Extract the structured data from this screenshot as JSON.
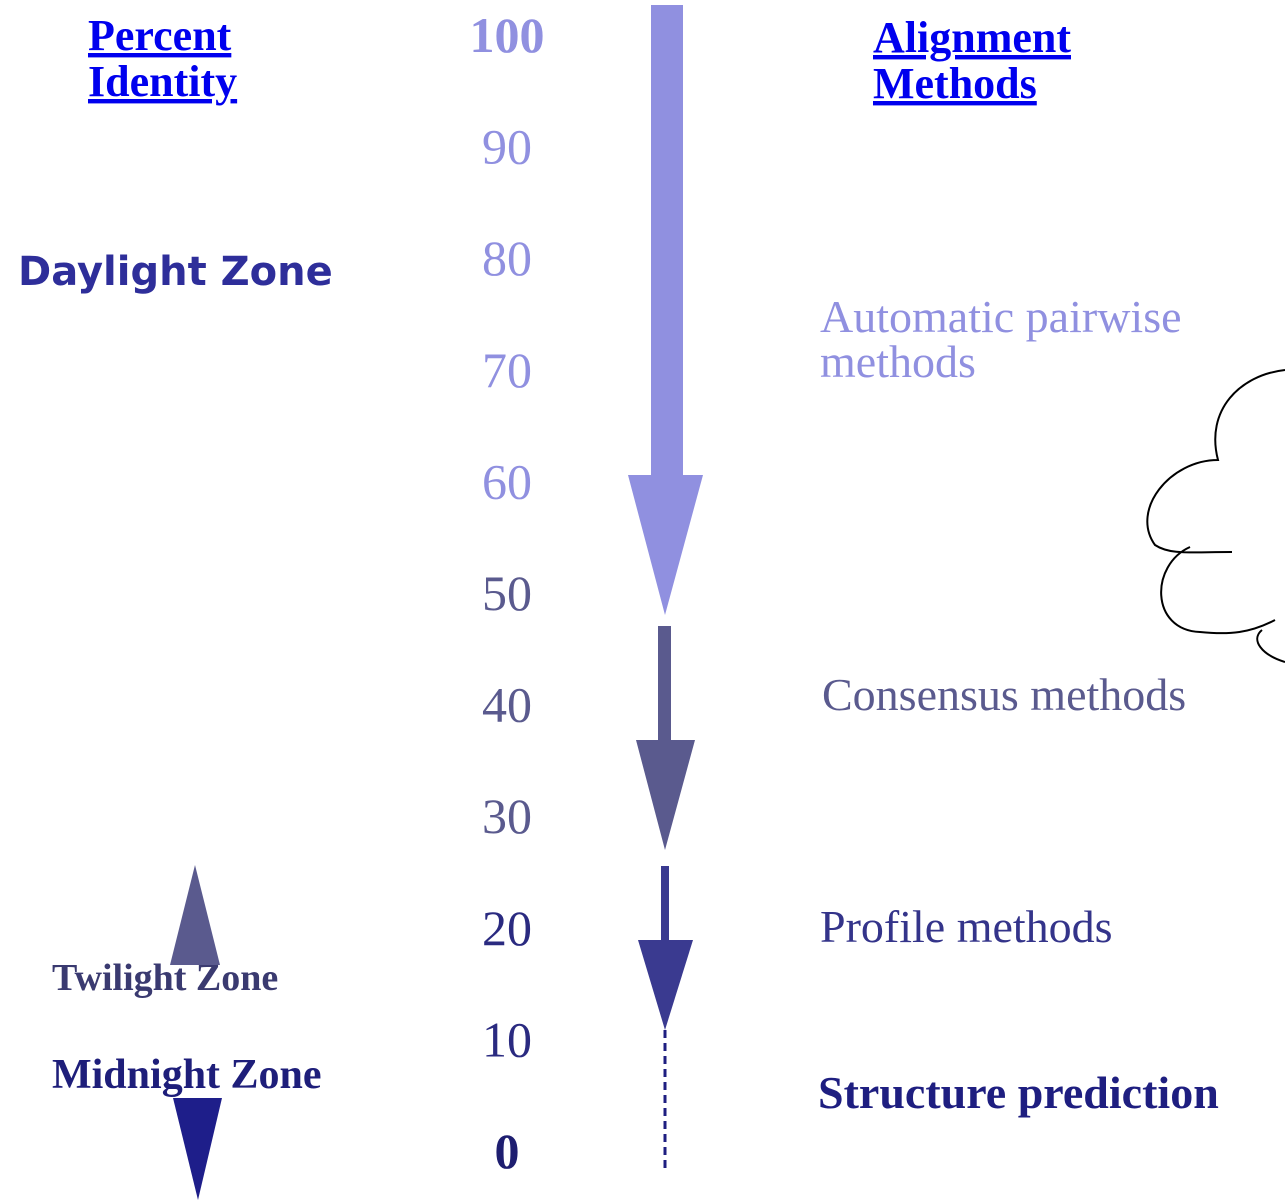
{
  "headers": {
    "percent_identity": [
      "Percent",
      "Identity"
    ],
    "alignment_methods": [
      "Alignment",
      "Methods"
    ]
  },
  "scale": [
    "100",
    "90",
    "80",
    "70",
    "60",
    "50",
    "40",
    "30",
    "20",
    "10",
    "0"
  ],
  "zones": {
    "daylight": "Daylight Zone",
    "twilight": "Twilight Zone",
    "midnight": "Midnight Zone"
  },
  "methods": {
    "automatic_pairwise": [
      "Automatic pairwise",
      "methods"
    ],
    "consensus": "Consensus methods",
    "profile": "Profile methods",
    "structure_prediction": "Structure prediction"
  }
}
